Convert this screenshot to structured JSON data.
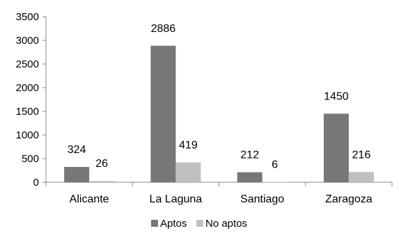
{
  "chart_data": {
    "type": "bar",
    "title": "",
    "xlabel": "",
    "ylabel": "",
    "categories": [
      "Alicante",
      "La Laguna",
      "Santiago",
      "Zaragoza"
    ],
    "series": [
      {
        "name": "Aptos",
        "color": "#777777",
        "values": [
          324,
          2886,
          212,
          1450
        ]
      },
      {
        "name": "No aptos",
        "color": "#c0c0c0",
        "values": [
          26,
          419,
          6,
          216
        ]
      }
    ],
    "ylim": [
      0,
      3500
    ],
    "yticks": [
      0,
      500,
      1000,
      1500,
      2000,
      2500,
      3000,
      3500
    ],
    "grid": false,
    "legend": "bottom",
    "data_labels": true
  }
}
